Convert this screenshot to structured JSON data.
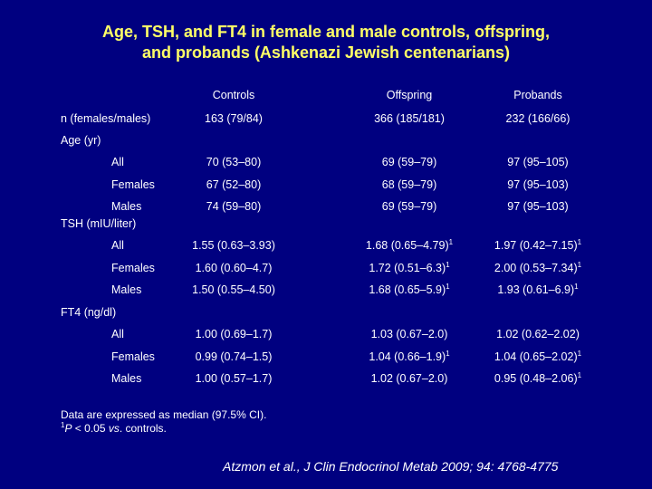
{
  "title": {
    "line1": "Age, TSH, and FT4 in female and male controls, offspring,",
    "line2": "and probands (Ashkenazi Jewish centenarians)"
  },
  "columns": [
    "Controls",
    "Offspring",
    "Probands"
  ],
  "n_row": {
    "label": "n (females/males)",
    "values": [
      "163 (79/84)",
      "366 (185/181)",
      "232 (166/66)"
    ]
  },
  "sections": [
    {
      "label": "Age (yr)",
      "rows": [
        {
          "label": "All",
          "values": [
            "70 (53–80)",
            "69 (59–79)",
            "97 (95–105)"
          ],
          "sup": [
            false,
            false,
            false
          ]
        },
        {
          "label": "Females",
          "values": [
            "67 (52–80)",
            "68 (59–79)",
            "97 (95–103)"
          ],
          "sup": [
            false,
            false,
            false
          ]
        },
        {
          "label": "Males",
          "values": [
            "74 (59–80)",
            "69 (59–79)",
            "97 (95–103)"
          ],
          "sup": [
            false,
            false,
            false
          ]
        }
      ]
    },
    {
      "label": "TSH (mIU/liter)",
      "rows": [
        {
          "label": "All",
          "values": [
            "1.55 (0.63–3.93)",
            "1.68 (0.65–4.79)",
            "1.97 (0.42–7.15)"
          ],
          "sup": [
            false,
            true,
            true
          ]
        },
        {
          "label": "Females",
          "values": [
            "1.60 (0.60–4.7)",
            "1.72 (0.51–6.3)",
            "2.00 (0.53–7.34)"
          ],
          "sup": [
            false,
            true,
            true
          ]
        },
        {
          "label": "Males",
          "values": [
            "1.50 (0.55–4.50)",
            "1.68 (0.65–5.9)",
            "1.93 (0.61–6.9)"
          ],
          "sup": [
            false,
            true,
            true
          ]
        }
      ]
    },
    {
      "label": "FT4 (ng/dl)",
      "rows": [
        {
          "label": "All",
          "values": [
            "1.00 (0.69–1.7)",
            "1.03 (0.67–2.0)",
            "1.02 (0.62–2.02)"
          ],
          "sup": [
            false,
            false,
            false
          ]
        },
        {
          "label": "Females",
          "values": [
            "0.99 (0.74–1.5)",
            "1.04 (0.66–1.9)",
            "1.04 (0.65–2.02)"
          ],
          "sup": [
            false,
            true,
            true
          ]
        },
        {
          "label": "Males",
          "values": [
            "1.00 (0.57–1.7)",
            "1.02 (0.67–2.0)",
            "0.95 (0.48–2.06)"
          ],
          "sup": [
            false,
            false,
            true
          ]
        }
      ]
    }
  ],
  "sup_mark": "1",
  "footnote": {
    "line1": "Data are expressed as median (97.5% CI).",
    "line2_sup": "1",
    "line2_p": "P",
    "line2_mid": " < 0.05 ",
    "line2_vs": "vs",
    "line2_end": ". controls."
  },
  "citation": "Atzmon et al., J Clin Endocrinol Metab 2009; 94: 4768-4775",
  "colors": {
    "background": "#000080",
    "title": "#ffff66",
    "text": "#ffffff"
  }
}
